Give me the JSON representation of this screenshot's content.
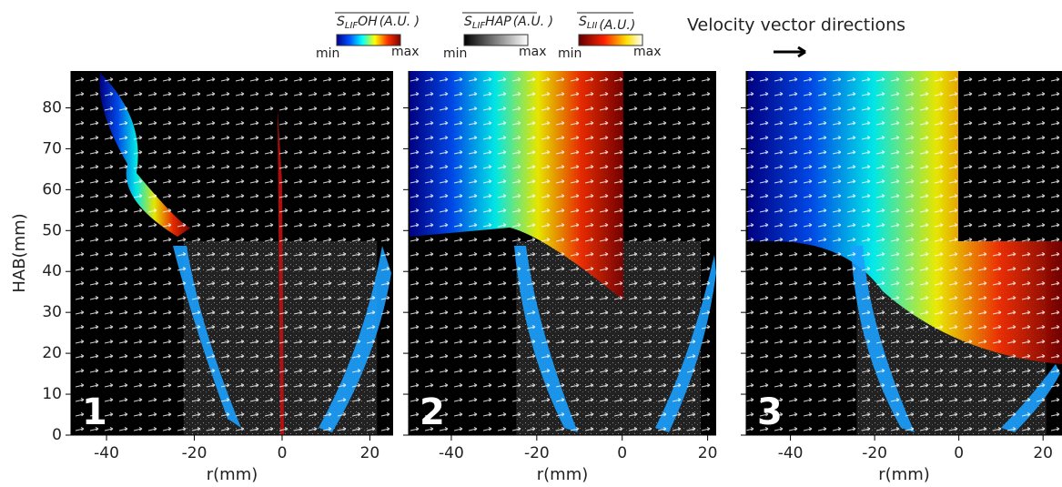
{
  "legend": {
    "items": [
      {
        "symbol": "S",
        "sub": "LIF",
        "suffix": "OH",
        "unit": "(A.U. )",
        "min": "min",
        "max": "max",
        "colormap": "jet"
      },
      {
        "symbol": "S",
        "sub": "LIF",
        "suffix": "HAP",
        "unit": "(A.U. )",
        "min": "min",
        "max": "max",
        "colormap": "gray"
      },
      {
        "symbol": "S",
        "sub": "LII",
        "suffix": "",
        "unit": "(A.U.)",
        "min": "min",
        "max": "max",
        "colormap": "hot"
      }
    ],
    "vector_label": "Velocity vector directions"
  },
  "ylabel": "HAB(mm)",
  "ylim": [
    0,
    89
  ],
  "yticks": [
    0,
    10,
    20,
    30,
    40,
    50,
    60,
    70,
    80
  ],
  "panels": [
    {
      "label": "1",
      "xlabel": "r(mm)",
      "xlim": [
        -48.1,
        25.3
      ],
      "xticks": [
        -40,
        -20,
        0,
        20
      ]
    },
    {
      "label": "2",
      "xlabel": "r(mm)",
      "xlim": [
        -50,
        22
      ],
      "xticks": [
        -40,
        -20,
        0,
        20
      ]
    },
    {
      "label": "3",
      "xlabel": "r(mm)",
      "xlim": [
        -50.5,
        24.5
      ],
      "xticks": [
        -40,
        -20,
        0,
        20
      ]
    }
  ]
}
